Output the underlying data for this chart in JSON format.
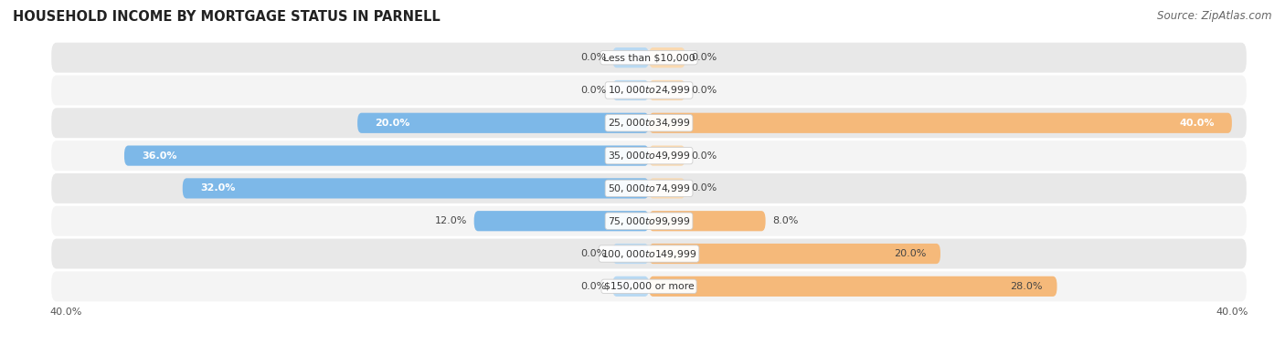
{
  "title": "HOUSEHOLD INCOME BY MORTGAGE STATUS IN PARNELL",
  "source": "Source: ZipAtlas.com",
  "categories": [
    "Less than $10,000",
    "$10,000 to $24,999",
    "$25,000 to $34,999",
    "$35,000 to $49,999",
    "$50,000 to $74,999",
    "$75,000 to $99,999",
    "$100,000 to $149,999",
    "$150,000 or more"
  ],
  "without_mortgage": [
    0.0,
    0.0,
    20.0,
    36.0,
    32.0,
    12.0,
    0.0,
    0.0
  ],
  "with_mortgage": [
    0.0,
    0.0,
    40.0,
    0.0,
    0.0,
    8.0,
    20.0,
    28.0
  ],
  "color_without": "#7db8e8",
  "color_with": "#f5b97a",
  "color_without_light": "#b8d9f3",
  "color_with_light": "#fad9b0",
  "xlim": 40.0,
  "title_fontsize": 10.5,
  "source_fontsize": 8.5,
  "label_fontsize": 8,
  "category_fontsize": 7.8,
  "bar_height": 0.62,
  "row_colors": [
    "#e8e8e8",
    "#f4f4f4"
  ]
}
